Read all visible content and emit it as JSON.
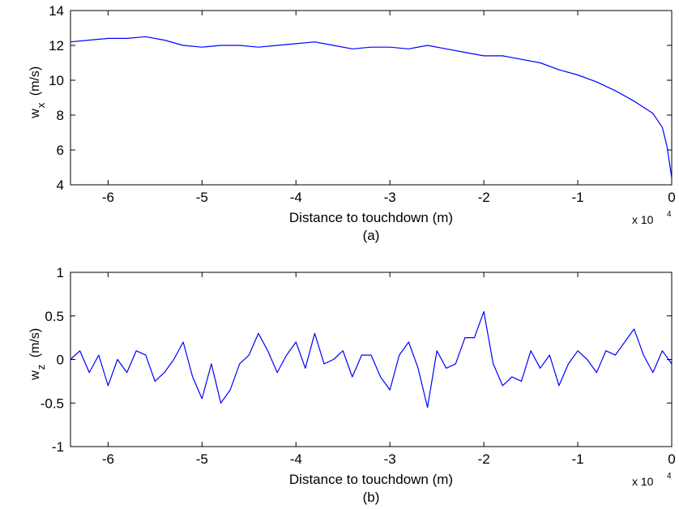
{
  "chart_data": [
    {
      "type": "line",
      "caption": "(a)",
      "xlabel": "Distance to touchdown (m)",
      "ylabel_main": "w",
      "ylabel_sub": "x",
      "ylabel_unit": "(m/s)",
      "x_multiplier": "x 10",
      "x_multiplier_exp": "4",
      "xlim": [
        -6.4,
        0
      ],
      "ylim": [
        4,
        14
      ],
      "xticks": [
        -6,
        -5,
        -4,
        -3,
        -2,
        -1,
        0
      ],
      "yticks": [
        4,
        6,
        8,
        10,
        12,
        14
      ],
      "grid": false,
      "series": [
        {
          "color": "#0000ff",
          "x": [
            -6.4,
            -6.2,
            -6.0,
            -5.8,
            -5.6,
            -5.4,
            -5.2,
            -5.0,
            -4.8,
            -4.6,
            -4.4,
            -4.2,
            -4.0,
            -3.8,
            -3.6,
            -3.4,
            -3.2,
            -3.0,
            -2.8,
            -2.6,
            -2.4,
            -2.2,
            -2.0,
            -1.8,
            -1.6,
            -1.4,
            -1.2,
            -1.0,
            -0.8,
            -0.6,
            -0.4,
            -0.2,
            -0.1,
            -0.05,
            0.0
          ],
          "values": [
            12.2,
            12.3,
            12.4,
            12.4,
            12.5,
            12.3,
            12.0,
            11.9,
            12.0,
            12.0,
            11.9,
            12.0,
            12.1,
            12.2,
            12.0,
            11.8,
            11.9,
            11.9,
            11.8,
            12.0,
            11.8,
            11.6,
            11.4,
            11.4,
            11.2,
            11.0,
            10.6,
            10.3,
            9.9,
            9.4,
            8.8,
            8.1,
            7.3,
            6.2,
            4.4
          ]
        }
      ]
    },
    {
      "type": "line",
      "caption": "(b)",
      "xlabel": "Distance to touchdown (m)",
      "ylabel_main": "w",
      "ylabel_sub": "z",
      "ylabel_unit": "(m/s)",
      "x_multiplier": "x 10",
      "x_multiplier_exp": "4",
      "xlim": [
        -6.4,
        0
      ],
      "ylim": [
        -1,
        1
      ],
      "xticks": [
        -6,
        -5,
        -4,
        -3,
        -2,
        -1,
        0
      ],
      "yticks": [
        -1,
        -0.5,
        0,
        0.5,
        1
      ],
      "grid": false,
      "series": [
        {
          "color": "#0000ff",
          "x": [
            -6.4,
            -6.3,
            -6.2,
            -6.1,
            -6.0,
            -5.9,
            -5.8,
            -5.7,
            -5.6,
            -5.5,
            -5.4,
            -5.3,
            -5.2,
            -5.1,
            -5.0,
            -4.9,
            -4.8,
            -4.7,
            -4.6,
            -4.5,
            -4.4,
            -4.3,
            -4.2,
            -4.1,
            -4.0,
            -3.9,
            -3.8,
            -3.7,
            -3.6,
            -3.5,
            -3.4,
            -3.3,
            -3.2,
            -3.1,
            -3.0,
            -2.9,
            -2.8,
            -2.7,
            -2.6,
            -2.5,
            -2.4,
            -2.3,
            -2.2,
            -2.1,
            -2.0,
            -1.9,
            -1.8,
            -1.7,
            -1.6,
            -1.5,
            -1.4,
            -1.3,
            -1.2,
            -1.1,
            -1.0,
            -0.9,
            -0.8,
            -0.7,
            -0.6,
            -0.5,
            -0.4,
            -0.3,
            -0.2,
            -0.1,
            0.0
          ],
          "values": [
            0.0,
            0.1,
            -0.15,
            0.05,
            -0.3,
            0.0,
            -0.15,
            0.1,
            0.05,
            -0.25,
            -0.15,
            0.0,
            0.2,
            -0.2,
            -0.45,
            -0.05,
            -0.5,
            -0.35,
            -0.05,
            0.05,
            0.3,
            0.1,
            -0.15,
            0.05,
            0.2,
            -0.1,
            0.3,
            -0.05,
            0.0,
            0.1,
            -0.2,
            0.05,
            0.05,
            -0.2,
            -0.35,
            0.05,
            0.2,
            -0.1,
            -0.55,
            0.1,
            -0.1,
            -0.05,
            0.25,
            0.25,
            0.55,
            -0.05,
            -0.3,
            -0.2,
            -0.25,
            0.1,
            -0.1,
            0.05,
            -0.3,
            -0.05,
            0.1,
            0.0,
            -0.15,
            0.1,
            0.05,
            0.2,
            0.35,
            0.05,
            -0.15,
            0.1,
            -0.05
          ]
        }
      ]
    }
  ]
}
